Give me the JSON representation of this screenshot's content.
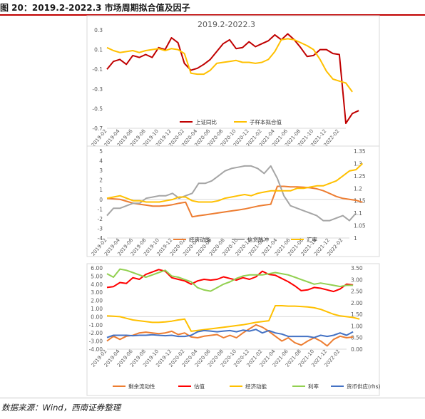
{
  "figure": {
    "title": "图 20：2019.2-2022.3 市场周期拟合值及因子",
    "source": "数据来源：Wind，西南证券整理"
  },
  "dates": [
    "2019-02",
    "2019-04",
    "2019-06",
    "2019-08",
    "2019-10",
    "2019-12",
    "2020-02",
    "2020-04",
    "2020-06",
    "2020-08",
    "2020-10",
    "2020-12",
    "2021-02",
    "2021-04",
    "2021-06",
    "2021-08",
    "2021-10",
    "2021-12",
    "2022-02"
  ],
  "chart_data": [
    {
      "type": "line",
      "title": "2019.2-2022.3",
      "x_start": "2019-02",
      "x_end": "2022-03",
      "x_step": "month",
      "x_ticks": [
        "2019-02",
        "2019-04",
        "2019-06",
        "2019-08",
        "2019-10",
        "2019-12",
        "2020-02",
        "2020-04",
        "2020-06",
        "2020-08",
        "2020-10",
        "2020-12",
        "2021-02",
        "2021-04",
        "2021-06",
        "2021-08",
        "2021-10",
        "2021-12",
        "2022-02"
      ],
      "ylim": [
        -0.7,
        0.3
      ],
      "y_ticks": [
        "0.3",
        "0.1",
        "-0.1",
        "-0.3",
        "-0.5",
        "-0.7"
      ],
      "grid": false,
      "legend_position": "bottom",
      "series": [
        {
          "name": "上证同比",
          "color": "#c00000",
          "values": [
            -0.1,
            -0.02,
            0.0,
            -0.05,
            0.04,
            0.02,
            0.05,
            0.02,
            0.12,
            0.1,
            0.22,
            0.17,
            -0.04,
            -0.11,
            -0.09,
            -0.05,
            0.0,
            0.08,
            0.16,
            0.2,
            0.11,
            0.12,
            0.18,
            0.13,
            0.16,
            0.19,
            0.25,
            0.2,
            0.26,
            0.2,
            0.12,
            0.03,
            0.04,
            0.1,
            0.1,
            0.06,
            0.05,
            -0.65,
            -0.55,
            -0.52
          ]
        },
        {
          "name": "子样本拟合值",
          "color": "#ffc000",
          "values": [
            0.12,
            0.09,
            0.07,
            0.08,
            0.09,
            0.07,
            0.09,
            0.1,
            0.11,
            0.09,
            0.11,
            0.1,
            0.06,
            -0.14,
            -0.15,
            -0.15,
            -0.11,
            -0.04,
            -0.03,
            -0.02,
            -0.01,
            -0.03,
            -0.03,
            -0.04,
            -0.03,
            0.0,
            0.08,
            0.2,
            0.21,
            0.2,
            0.17,
            0.14,
            0.1,
            0.0,
            -0.12,
            -0.2,
            -0.22,
            -0.24,
            -0.33
          ]
        }
      ]
    },
    {
      "type": "line",
      "x_start": "2019-02",
      "x_end": "2022-03",
      "x_step": "month",
      "x_ticks": [
        "2019-02",
        "2019-04",
        "2019-06",
        "2019-08",
        "2019-10",
        "2019-12",
        "2020-02",
        "2020-04",
        "2020-06",
        "2020-08",
        "2020-10",
        "2020-12",
        "2021-02",
        "2021-04",
        "2021-06",
        "2021-08",
        "2021-10",
        "2021-12",
        "2022-02"
      ],
      "ylim_left": [
        -4,
        5
      ],
      "y_ticks_left": [
        "5",
        "4",
        "3",
        "2",
        "1",
        "0",
        "-1",
        "-2",
        "-3",
        "-4"
      ],
      "ylim_right": [
        1.0,
        1.35
      ],
      "y_ticks_right": [
        "1.35",
        "1.3",
        "1.25",
        "1.2",
        "1.15",
        "1.1",
        "1.05",
        "1"
      ],
      "grid": false,
      "legend_position": "bottom",
      "series": [
        {
          "name": "经济动能",
          "axis": "left",
          "color": "#ed7d31",
          "values": [
            0.1,
            0.05,
            0.0,
            -0.2,
            -0.4,
            -0.5,
            -0.6,
            -0.7,
            -0.7,
            -0.65,
            -0.55,
            -0.4,
            -0.3,
            -1.8,
            -1.7,
            -1.6,
            -1.5,
            -1.4,
            -1.3,
            -1.2,
            -1.1,
            -1.0,
            -0.85,
            -0.7,
            -0.6,
            -0.5,
            1.35,
            1.35,
            1.3,
            1.3,
            1.25,
            1.2,
            1.1,
            0.9,
            0.6,
            0.3,
            0.1,
            0.0,
            -0.1,
            -0.3
          ]
        },
        {
          "name": "信贷脉冲",
          "axis": "right",
          "color": "#a5a5a5",
          "values": [
            1.09,
            1.12,
            1.12,
            1.13,
            1.14,
            1.14,
            1.16,
            1.165,
            1.17,
            1.17,
            1.18,
            1.16,
            1.17,
            1.18,
            1.22,
            1.22,
            1.23,
            1.25,
            1.27,
            1.28,
            1.285,
            1.29,
            1.29,
            1.28,
            1.26,
            1.29,
            1.24,
            1.17,
            1.13,
            1.12,
            1.11,
            1.1,
            1.09,
            1.07,
            1.07,
            1.08,
            1.09,
            1.07,
            1.1
          ]
        },
        {
          "name": "汇率",
          "axis": "right",
          "color": "#ffc000",
          "values": [
            1.16,
            1.165,
            1.17,
            1.16,
            1.15,
            1.15,
            1.145,
            1.145,
            1.145,
            1.15,
            1.155,
            1.165,
            1.165,
            1.15,
            1.145,
            1.145,
            1.145,
            1.15,
            1.16,
            1.165,
            1.17,
            1.175,
            1.17,
            1.18,
            1.185,
            1.19,
            1.19,
            1.19,
            1.19,
            1.2,
            1.2,
            1.205,
            1.21,
            1.21,
            1.22,
            1.23,
            1.25,
            1.27,
            1.275,
            1.3
          ]
        }
      ]
    },
    {
      "type": "line",
      "x_start": "2019-02",
      "x_end": "2022-03",
      "x_step": "month",
      "x_ticks": [
        "2019-02",
        "2019-04",
        "2019-06",
        "2019-08",
        "2019-10",
        "2019-12",
        "2020-02",
        "2020-04",
        "2020-06",
        "2020-08",
        "2020-10",
        "2020-12",
        "2021-02",
        "2021-04",
        "2021-06",
        "2021-08",
        "2021-10",
        "2021-12",
        "2022-02"
      ],
      "ylim_left": [
        -4.0,
        6.0
      ],
      "y_ticks_left": [
        "6.00",
        "5.00",
        "4.00",
        "3.00",
        "2.00",
        "1.00",
        "0.00",
        "-1.00",
        "-2.00",
        "-3.00",
        "-4.00"
      ],
      "ylim_right": [
        0.0,
        3.5
      ],
      "y_ticks_right": [
        "3.50",
        "3.00",
        "2.50",
        "2.00",
        "1.50",
        "1.00",
        "0.50",
        "0.00"
      ],
      "grid": false,
      "legend_position": "bottom",
      "series": [
        {
          "name": "剩余流动性",
          "axis": "left",
          "color": "#ed7d31",
          "values": [
            -3.0,
            -2.4,
            -2.8,
            -2.4,
            -2.3,
            -2.0,
            -1.9,
            -2.0,
            -2.1,
            -2.0,
            -1.8,
            -2.2,
            -2.0,
            -2.5,
            -2.6,
            -2.4,
            -2.3,
            -2.2,
            -2.6,
            -2.3,
            -2.6,
            -2.0,
            -1.5,
            -1.0,
            -1.3,
            -1.8,
            -2.4,
            -3.0,
            -2.6,
            -3.2,
            -3.5,
            -3.0,
            -2.6,
            -3.0,
            -3.6,
            -2.8,
            -2.4,
            -2.6,
            -2.5
          ]
        },
        {
          "name": "估值",
          "axis": "left",
          "color": "#ff0000",
          "values": [
            3.6,
            3.7,
            4.2,
            4.1,
            4.8,
            4.6,
            5.2,
            5.5,
            5.8,
            5.6,
            4.8,
            4.6,
            4.4,
            4.0,
            4.4,
            4.6,
            4.5,
            4.6,
            4.9,
            4.7,
            4.5,
            4.8,
            4.6,
            4.9,
            5.6,
            5.2,
            5.1,
            4.7,
            4.3,
            3.8,
            3.2,
            3.3,
            3.6,
            3.5,
            3.3,
            3.1,
            3.4,
            4.0,
            3.9
          ]
        },
        {
          "name": "经济动能",
          "axis": "left",
          "color": "#ffc000",
          "values": [
            0.1,
            0.05,
            0.0,
            -0.2,
            -0.4,
            -0.5,
            -0.6,
            -0.7,
            -0.7,
            -0.65,
            -0.55,
            -0.4,
            -0.3,
            -1.8,
            -1.7,
            -1.6,
            -1.5,
            -1.4,
            -1.3,
            -1.2,
            -1.1,
            -1.0,
            -0.85,
            -0.7,
            -0.6,
            -0.5,
            1.35,
            1.35,
            1.3,
            1.3,
            1.25,
            1.2,
            1.1,
            0.9,
            0.6,
            0.3,
            0.1,
            0.0,
            -0.1,
            -0.3
          ]
        },
        {
          "name": "利率",
          "axis": "right",
          "color": "#92d050",
          "values": [
            3.25,
            3.1,
            3.45,
            3.4,
            3.3,
            3.2,
            3.1,
            3.2,
            3.3,
            3.4,
            3.15,
            3.1,
            3.0,
            2.9,
            2.65,
            2.55,
            2.5,
            2.65,
            2.8,
            2.9,
            3.05,
            3.15,
            3.2,
            3.2,
            3.2,
            3.25,
            3.3,
            3.25,
            3.2,
            3.1,
            3.0,
            2.9,
            2.8,
            2.85,
            2.8,
            2.75,
            2.7,
            2.75,
            2.75
          ]
        },
        {
          "name": "货币供应(rhs)",
          "axis": "right",
          "color": "#4472c4",
          "values": [
            0.5,
            0.6,
            0.6,
            0.6,
            0.58,
            0.6,
            0.6,
            0.62,
            0.6,
            0.58,
            0.6,
            0.55,
            0.55,
            0.6,
            0.75,
            0.8,
            0.78,
            0.75,
            0.78,
            0.8,
            0.75,
            0.82,
            0.78,
            0.85,
            0.7,
            0.8,
            0.7,
            0.65,
            0.55,
            0.55,
            0.55,
            0.55,
            0.5,
            0.6,
            0.55,
            0.6,
            0.7,
            0.6,
            0.75
          ]
        }
      ]
    }
  ]
}
